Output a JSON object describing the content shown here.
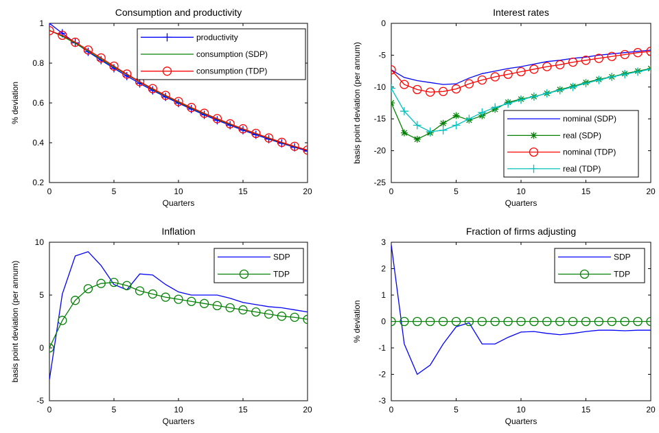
{
  "chart_data": [
    {
      "type": "line",
      "title": "Consumption and productivity",
      "xlabel": "Quarters",
      "ylabel": "% deviation",
      "xlim": [
        0,
        20
      ],
      "ylim": [
        0.2,
        1
      ],
      "xticks": [
        0,
        5,
        10,
        15,
        20
      ],
      "yticks": [
        0.2,
        0.4,
        0.6,
        0.8,
        1
      ],
      "ytick_labels": [
        "0.2",
        "0.4",
        "0.6",
        "0.8",
        "1"
      ],
      "legend_position": "top-right",
      "x": [
        0,
        1,
        2,
        3,
        4,
        5,
        6,
        7,
        8,
        9,
        10,
        11,
        12,
        13,
        14,
        15,
        16,
        17,
        18,
        19,
        20
      ],
      "series": [
        {
          "name": "productivity",
          "color": "#0000ff",
          "marker": "plus",
          "values": [
            1.0,
            0.95,
            0.902,
            0.857,
            0.815,
            0.774,
            0.735,
            0.698,
            0.663,
            0.63,
            0.599,
            0.569,
            0.54,
            0.513,
            0.488,
            0.463,
            0.44,
            0.418,
            0.397,
            0.377,
            0.358
          ]
        },
        {
          "name": "consumption (SDP)",
          "color": "#008000",
          "marker": "none",
          "values": [
            0.965,
            0.935,
            0.9,
            0.86,
            0.82,
            0.78,
            0.742,
            0.705,
            0.668,
            0.635,
            0.603,
            0.573,
            0.545,
            0.518,
            0.492,
            0.468,
            0.445,
            0.422,
            0.4,
            0.38,
            0.362
          ]
        },
        {
          "name": "consumption (TDP)",
          "color": "#ff0000",
          "marker": "circle",
          "values": [
            0.963,
            0.94,
            0.905,
            0.866,
            0.826,
            0.785,
            0.745,
            0.707,
            0.672,
            0.638,
            0.607,
            0.577,
            0.548,
            0.521,
            0.495,
            0.47,
            0.447,
            0.424,
            0.402,
            0.382,
            0.363
          ]
        }
      ]
    },
    {
      "type": "line",
      "title": "Interest rates",
      "xlabel": "Quarters",
      "ylabel": "basis point deviation (per annum)",
      "xlim": [
        0,
        20
      ],
      "ylim": [
        -25,
        0
      ],
      "xticks": [
        0,
        5,
        10,
        15,
        20
      ],
      "yticks": [
        -25,
        -20,
        -15,
        -10,
        -5,
        0
      ],
      "ytick_labels": [
        "-25",
        "-20",
        "-15",
        "-10",
        "-5",
        "0"
      ],
      "legend_position": "bottom-right",
      "x": [
        0,
        1,
        2,
        3,
        4,
        5,
        6,
        7,
        8,
        9,
        10,
        11,
        12,
        13,
        14,
        15,
        16,
        17,
        18,
        19,
        20
      ],
      "series": [
        {
          "name": "nominal (SDP)",
          "color": "#0000ff",
          "marker": "none",
          "values": [
            -7.3,
            -8.5,
            -9.0,
            -9.3,
            -9.6,
            -9.5,
            -8.6,
            -7.9,
            -7.5,
            -7.1,
            -6.8,
            -6.4,
            -6.0,
            -5.8,
            -5.5,
            -5.3,
            -5.0,
            -4.8,
            -4.6,
            -4.4,
            -4.2
          ]
        },
        {
          "name": "real (SDP)",
          "color": "#008000",
          "marker": "star",
          "values": [
            -12.5,
            -17.2,
            -18.2,
            -17.2,
            -15.7,
            -14.5,
            -15.2,
            -14.5,
            -13.5,
            -12.4,
            -11.9,
            -11.5,
            -11.0,
            -10.4,
            -9.9,
            -9.3,
            -8.8,
            -8.4,
            -7.9,
            -7.5,
            -7.1
          ]
        },
        {
          "name": "nominal (TDP)",
          "color": "#ff0000",
          "marker": "circle",
          "values": [
            -7.3,
            -9.6,
            -10.4,
            -10.8,
            -10.7,
            -10.3,
            -9.5,
            -8.9,
            -8.4,
            -8.0,
            -7.6,
            -7.2,
            -6.8,
            -6.5,
            -6.1,
            -5.8,
            -5.5,
            -5.2,
            -4.9,
            -4.6,
            -4.4
          ]
        },
        {
          "name": "real (TDP)",
          "color": "#00bfbf",
          "marker": "plus",
          "values": [
            -10.2,
            -13.8,
            -16.0,
            -17.0,
            -16.8,
            -16.0,
            -15.0,
            -14.0,
            -13.2,
            -12.6,
            -12.0,
            -11.5,
            -11.0,
            -10.5,
            -10.0,
            -9.4,
            -8.9,
            -8.4,
            -8.0,
            -7.6,
            -7.2
          ]
        }
      ]
    },
    {
      "type": "line",
      "title": "Inflation",
      "xlabel": "Quarters",
      "ylabel": "basis point deviation (per annum)",
      "xlim": [
        0,
        20
      ],
      "ylim": [
        -5,
        10
      ],
      "xticks": [
        0,
        5,
        10,
        15,
        20
      ],
      "yticks": [
        -5,
        0,
        5,
        10
      ],
      "ytick_labels": [
        "-5",
        "0",
        "5",
        "10"
      ],
      "legend_position": "top-right",
      "x": [
        0,
        1,
        2,
        3,
        4,
        5,
        6,
        7,
        8,
        9,
        10,
        11,
        12,
        13,
        14,
        15,
        16,
        17,
        18,
        19,
        20
      ],
      "series": [
        {
          "name": "SDP",
          "color": "#0000ff",
          "marker": "none",
          "values": [
            -3.0,
            5.1,
            8.7,
            9.1,
            7.8,
            6.0,
            5.5,
            7.0,
            6.9,
            6.0,
            5.3,
            5.0,
            5.0,
            5.0,
            4.7,
            4.3,
            4.1,
            3.9,
            3.8,
            3.6,
            3.4
          ]
        },
        {
          "name": "TDP",
          "color": "#008000",
          "marker": "circle",
          "values": [
            0.0,
            2.6,
            4.5,
            5.6,
            6.1,
            6.2,
            5.9,
            5.4,
            5.1,
            4.8,
            4.6,
            4.4,
            4.2,
            4.0,
            3.8,
            3.6,
            3.4,
            3.2,
            3.0,
            2.9,
            2.7
          ]
        }
      ]
    },
    {
      "type": "line",
      "title": "Fraction of firms adjusting",
      "xlabel": "Quarters",
      "ylabel": "% deviation",
      "xlim": [
        0,
        20
      ],
      "ylim": [
        -3,
        3
      ],
      "xticks": [
        0,
        5,
        10,
        15,
        20
      ],
      "yticks": [
        -3,
        -2,
        -1,
        0,
        1,
        2,
        3
      ],
      "ytick_labels": [
        "-3",
        "-2",
        "-1",
        "0",
        "1",
        "2",
        "3"
      ],
      "legend_position": "top-right",
      "x": [
        0,
        1,
        2,
        3,
        4,
        5,
        6,
        7,
        8,
        9,
        10,
        11,
        12,
        13,
        14,
        15,
        16,
        17,
        18,
        19,
        20
      ],
      "series": [
        {
          "name": "SDP",
          "color": "#0000ff",
          "marker": "none",
          "values": [
            2.9,
            -0.85,
            -2.0,
            -1.65,
            -0.85,
            -0.2,
            -0.05,
            -0.85,
            -0.85,
            -0.6,
            -0.4,
            -0.38,
            -0.45,
            -0.5,
            -0.45,
            -0.38,
            -0.33,
            -0.33,
            -0.35,
            -0.33,
            -0.33
          ]
        },
        {
          "name": "TDP",
          "color": "#008000",
          "marker": "circle",
          "values": [
            0,
            0,
            0,
            0,
            0,
            0,
            0,
            0,
            0,
            0,
            0,
            0,
            0,
            0,
            0,
            0,
            0,
            0,
            0,
            0,
            0
          ]
        }
      ]
    }
  ]
}
